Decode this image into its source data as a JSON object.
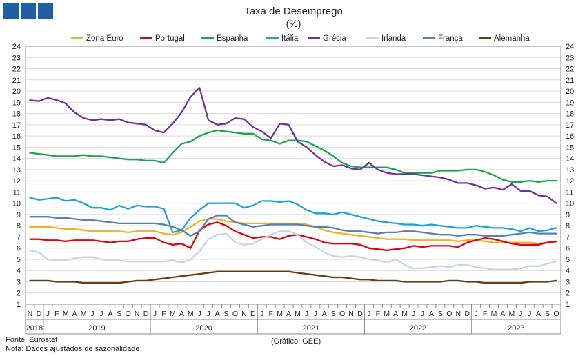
{
  "header": {
    "title": "Taxa de Desemprego",
    "subtitle": "(%)"
  },
  "logo": {
    "icon": "institution-logo-icon",
    "color": "#1f5fa8"
  },
  "footer": {
    "source": "Fonte: Eurostat",
    "note": "Nota: Dados ajustados de sazonalidade",
    "credit": "(Gráfico: GEE)"
  },
  "chart_data": {
    "type": "line",
    "title": "Taxa de Desemprego",
    "subtitle": "(%)",
    "ylim": [
      1,
      24
    ],
    "yticks": [
      1,
      2,
      3,
      4,
      5,
      6,
      7,
      8,
      9,
      10,
      11,
      12,
      13,
      14,
      15,
      16,
      17,
      18,
      19,
      20,
      21,
      22,
      23,
      24
    ],
    "grid": true,
    "legend": "top",
    "x_month_labels": [
      "N",
      "D",
      "J",
      "F",
      "M",
      "A",
      "M",
      "J",
      "J",
      "A",
      "S",
      "O",
      "N",
      "D",
      "J",
      "F",
      "M",
      "A",
      "M",
      "J",
      "J",
      "A",
      "S",
      "O",
      "N",
      "D",
      "J",
      "F",
      "M",
      "A",
      "M",
      "J",
      "J",
      "A",
      "S",
      "O",
      "N",
      "D",
      "J",
      "F",
      "M",
      "A",
      "M",
      "J",
      "J",
      "A",
      "S",
      "O",
      "N",
      "D",
      "J",
      "F",
      "M",
      "A",
      "M",
      "J",
      "J",
      "A",
      "S",
      "O"
    ],
    "x_year_labels": [
      {
        "year": "2018",
        "first": 0,
        "last": 1
      },
      {
        "year": "2019",
        "first": 2,
        "last": 13
      },
      {
        "year": "2020",
        "first": 14,
        "last": 25
      },
      {
        "year": "2021",
        "first": 26,
        "last": 37
      },
      {
        "year": "2022",
        "first": 38,
        "last": 49
      },
      {
        "year": "2023",
        "first": 50,
        "last": 59
      }
    ],
    "series": [
      {
        "name": "Zona Euro",
        "color": "#f0b323",
        "values": [
          7.9,
          7.9,
          7.9,
          7.8,
          7.7,
          7.7,
          7.6,
          7.5,
          7.5,
          7.5,
          7.5,
          7.4,
          7.5,
          7.5,
          7.5,
          7.3,
          7.2,
          7.4,
          7.9,
          8.4,
          8.6,
          8.6,
          8.4,
          8.3,
          8.2,
          8.2,
          8.2,
          8.2,
          8.2,
          8.2,
          8.2,
          8.1,
          7.9,
          7.6,
          7.4,
          7.3,
          7.2,
          7.1,
          7.0,
          6.9,
          6.8,
          6.8,
          6.8,
          6.7,
          6.7,
          6.7,
          6.7,
          6.7,
          6.6,
          6.7,
          6.7,
          6.6,
          6.5,
          6.5,
          6.5,
          6.5,
          6.5,
          6.4,
          6.5,
          6.5
        ]
      },
      {
        "name": "Portugal",
        "color": "#e3000f",
        "values": [
          6.8,
          6.8,
          6.7,
          6.7,
          6.6,
          6.7,
          6.7,
          6.7,
          6.6,
          6.5,
          6.6,
          6.6,
          6.8,
          6.9,
          6.9,
          6.5,
          6.3,
          6.4,
          6.0,
          7.6,
          8.1,
          8.3,
          8.0,
          7.5,
          7.2,
          6.9,
          7.0,
          7.0,
          6.8,
          7.1,
          7.2,
          7.0,
          6.8,
          6.5,
          6.4,
          6.4,
          6.4,
          6.3,
          6.0,
          5.9,
          5.8,
          5.9,
          6.0,
          6.2,
          6.1,
          6.2,
          6.2,
          6.2,
          6.1,
          6.5,
          6.7,
          6.9,
          6.8,
          6.6,
          6.4,
          6.3,
          6.3,
          6.3,
          6.5,
          6.6
        ]
      },
      {
        "name": "Espanha",
        "color": "#1aa64a",
        "values": [
          14.5,
          14.4,
          14.3,
          14.2,
          14.2,
          14.2,
          14.3,
          14.2,
          14.2,
          14.1,
          14.0,
          13.9,
          13.9,
          13.8,
          13.8,
          13.6,
          14.5,
          15.3,
          15.5,
          16.0,
          16.3,
          16.5,
          16.4,
          16.3,
          16.2,
          16.2,
          15.7,
          15.6,
          15.3,
          15.6,
          15.6,
          15.5,
          15.1,
          14.7,
          14.2,
          13.6,
          13.3,
          13.2,
          13.2,
          13.2,
          13.2,
          13.0,
          12.7,
          12.7,
          12.7,
          12.7,
          12.9,
          12.9,
          12.9,
          13.0,
          13.0,
          12.8,
          12.5,
          12.1,
          11.9,
          11.9,
          12.0,
          11.9,
          12.0,
          12.0
        ]
      },
      {
        "name": "Itália",
        "color": "#1aa3e1",
        "values": [
          10.5,
          10.3,
          10.4,
          10.5,
          10.2,
          10.3,
          10.0,
          9.6,
          9.6,
          9.4,
          9.8,
          9.5,
          9.8,
          9.7,
          9.7,
          9.5,
          7.4,
          7.6,
          8.7,
          9.4,
          10.0,
          10.0,
          10.0,
          10.0,
          9.6,
          9.8,
          10.2,
          10.2,
          10.1,
          10.2,
          9.9,
          9.4,
          9.1,
          9.1,
          9.0,
          9.2,
          9.0,
          8.8,
          8.6,
          8.4,
          8.3,
          8.2,
          8.1,
          8.1,
          8.0,
          8.1,
          8.0,
          7.9,
          7.8,
          7.8,
          8.0,
          7.9,
          7.8,
          7.8,
          7.7,
          7.5,
          7.8,
          7.5,
          7.6,
          7.8
        ]
      },
      {
        "name": "Grécia",
        "color": "#7030a0",
        "values": [
          19.2,
          19.1,
          19.4,
          19.2,
          18.9,
          18.1,
          17.6,
          17.4,
          17.5,
          17.4,
          17.5,
          17.2,
          17.1,
          17.0,
          16.5,
          16.3,
          17.1,
          18.1,
          19.5,
          20.3,
          17.4,
          17.0,
          17.1,
          17.6,
          17.5,
          16.8,
          16.4,
          15.8,
          17.1,
          17.0,
          15.5,
          15.0,
          14.3,
          13.7,
          13.3,
          13.4,
          13.1,
          13.0,
          13.6,
          13.0,
          12.7,
          12.6,
          12.6,
          12.6,
          12.5,
          12.4,
          12.3,
          12.1,
          11.8,
          11.8,
          11.6,
          11.3,
          11.4,
          11.2,
          11.7,
          11.1,
          11.1,
          10.7,
          10.6,
          10.0
        ]
      },
      {
        "name": "Irlanda",
        "color": "#c5d5e4",
        "values": [
          5.8,
          5.6,
          5.0,
          4.9,
          4.9,
          5.1,
          5.2,
          5.2,
          5.0,
          4.9,
          4.9,
          4.8,
          4.8,
          4.8,
          4.8,
          4.8,
          4.9,
          4.7,
          5.0,
          5.7,
          6.8,
          7.2,
          7.3,
          6.5,
          6.3,
          6.4,
          6.8,
          7.2,
          7.5,
          7.5,
          7.2,
          6.5,
          6.1,
          5.6,
          5.3,
          5.2,
          5.3,
          5.2,
          5.0,
          4.9,
          4.7,
          5.0,
          4.5,
          4.2,
          4.2,
          4.3,
          4.4,
          4.3,
          4.5,
          4.5,
          4.3,
          4.2,
          4.1,
          4.1,
          4.1,
          4.2,
          4.4,
          4.4,
          4.6,
          4.8
        ]
      },
      {
        "name": "França",
        "color": "#5b7fb0",
        "values": [
          8.8,
          8.8,
          8.8,
          8.7,
          8.7,
          8.6,
          8.5,
          8.5,
          8.4,
          8.3,
          8.2,
          8.2,
          8.2,
          8.2,
          8.2,
          8.1,
          7.9,
          7.6,
          7.1,
          7.5,
          8.6,
          8.9,
          8.9,
          8.3,
          8.1,
          7.9,
          8.0,
          8.1,
          8.1,
          8.1,
          8.1,
          8.0,
          7.9,
          7.9,
          7.8,
          7.6,
          7.5,
          7.5,
          7.4,
          7.3,
          7.4,
          7.4,
          7.5,
          7.5,
          7.4,
          7.3,
          7.2,
          7.2,
          7.1,
          7.2,
          7.2,
          7.1,
          7.1,
          7.1,
          7.2,
          7.3,
          7.4,
          7.3,
          7.3,
          7.3
        ]
      },
      {
        "name": "Alemanha",
        "color": "#6b3a0f",
        "values": [
          3.1,
          3.1,
          3.1,
          3.0,
          3.0,
          3.0,
          2.9,
          2.9,
          2.9,
          2.9,
          2.9,
          3.0,
          3.1,
          3.1,
          3.2,
          3.3,
          3.4,
          3.5,
          3.6,
          3.7,
          3.8,
          3.9,
          3.9,
          3.9,
          3.9,
          3.9,
          3.9,
          3.9,
          3.9,
          3.9,
          3.8,
          3.7,
          3.6,
          3.5,
          3.4,
          3.4,
          3.3,
          3.2,
          3.2,
          3.1,
          3.1,
          3.1,
          3.0,
          3.0,
          3.0,
          3.0,
          3.0,
          3.1,
          3.1,
          3.0,
          3.0,
          2.9,
          2.9,
          2.9,
          2.9,
          2.9,
          3.0,
          3.0,
          3.0,
          3.1
        ]
      }
    ]
  }
}
